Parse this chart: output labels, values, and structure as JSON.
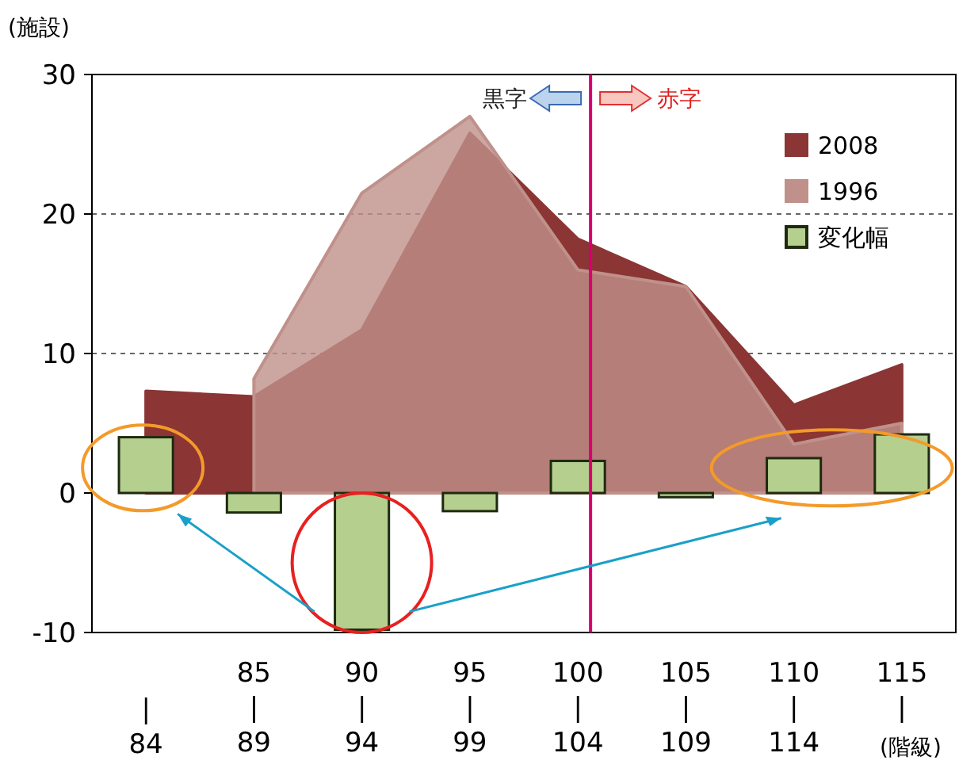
{
  "chart_data": {
    "type": "area",
    "ylabel": "(施設)",
    "xlabel": "(階級)",
    "categories": [
      "|\n84",
      "85\n|\n89",
      "90\n|\n94",
      "95\n|\n99",
      "100\n|\n104",
      "105\n|\n109",
      "110\n|\n114",
      "115\n|"
    ],
    "series": [
      {
        "name": "2008",
        "color": "#8b3535",
        "values": [
          7.3,
          6.9,
          11.7,
          25.8,
          18.2,
          14.8,
          6.3,
          9.2
        ]
      },
      {
        "name": "1996",
        "color": "#bf918a",
        "values": [
          null,
          8.2,
          21.5,
          27,
          16,
          14.8,
          3.5,
          5
        ]
      },
      {
        "name": "変化幅",
        "type": "bar",
        "color": "#b5cf8f",
        "values": [
          4,
          -1.4,
          -9.8,
          -1.3,
          2.3,
          -0.3,
          2.5,
          4.2
        ]
      }
    ],
    "ylim": [
      -10,
      30
    ],
    "yticks": [
      -10,
      0,
      10,
      20,
      30
    ],
    "grid": "y",
    "legend": "top right",
    "ref_lines": [
      {
        "axis": "x",
        "value": "100\n|\n104",
        "color": "#d6006e"
      }
    ],
    "annotations": [
      "黒字",
      "赤字"
    ]
  }
}
